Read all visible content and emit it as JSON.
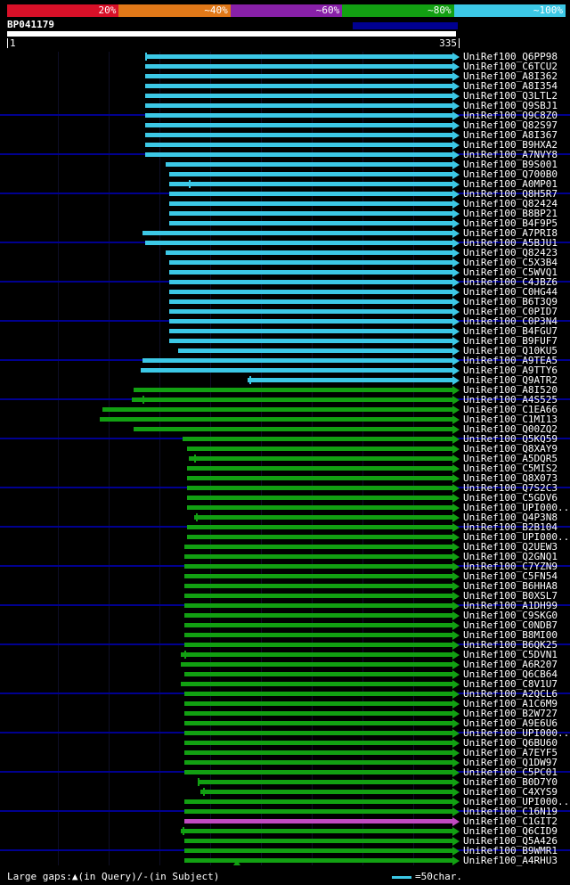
{
  "scale": {
    "segments": [
      {
        "label": "20%",
        "color": "#d81028"
      },
      {
        "label": "~40%",
        "color": "#e07818"
      },
      {
        "label": "~60%",
        "color": "#8820a8"
      },
      {
        "label": "~80%",
        "color": "#12a012"
      },
      {
        "label": "~100%",
        "color": "#3cc8e6"
      }
    ]
  },
  "query": {
    "name": "BP041179",
    "start": "1",
    "end": "335"
  },
  "footer": {
    "gaps": "Large gaps:▲(in Query)/-(in Subject)",
    "unit": "=50char."
  },
  "colors": {
    "cyan": "#3cc8e6",
    "green": "#12a012",
    "magenta": "#c04ac0",
    "navy": "#000090",
    "white": "#ffffff"
  },
  "hits": [
    {
      "label": "UniRef100_Q6PP98",
      "c": "cyan",
      "s": 163,
      "t": 163
    },
    {
      "label": "UniRef100_C6TCU2",
      "c": "cyan",
      "s": 163
    },
    {
      "label": "UniRef100_A8I362",
      "c": "cyan",
      "s": 163
    },
    {
      "label": "UniRef100_A8I354",
      "c": "cyan",
      "s": 163
    },
    {
      "label": "UniRef100_Q3LTL2",
      "c": "cyan",
      "s": 163
    },
    {
      "label": "UniRef100_Q9SBJ1",
      "c": "cyan",
      "s": 163
    },
    {
      "label": "UniRef100_Q9C8Z0",
      "c": "cyan",
      "s": 163,
      "n": true
    },
    {
      "label": "UniRef100_Q82S97",
      "c": "cyan",
      "s": 163
    },
    {
      "label": "UniRef100_A8I367",
      "c": "cyan",
      "s": 163
    },
    {
      "label": "UniRef100_B9HXA2",
      "c": "cyan",
      "s": 163
    },
    {
      "label": "UniRef100_A7NVY8",
      "c": "cyan",
      "s": 163,
      "n": true
    },
    {
      "label": "UniRef100_B9S001",
      "c": "cyan",
      "s": 186
    },
    {
      "label": "UniRef100_Q700B0",
      "c": "cyan",
      "s": 190
    },
    {
      "label": "UniRef100_A0MP01",
      "c": "cyan",
      "s": 190,
      "t": 212
    },
    {
      "label": "UniRef100_Q8H5R7",
      "c": "cyan",
      "s": 190,
      "n": true
    },
    {
      "label": "UniRef100_Q82424",
      "c": "cyan",
      "s": 190
    },
    {
      "label": "UniRef100_B8BP21",
      "c": "cyan",
      "s": 190
    },
    {
      "label": "UniRef100_B4F9P5",
      "c": "cyan",
      "s": 190
    },
    {
      "label": "UniRef100_A7PRI8",
      "c": "cyan",
      "s": 160
    },
    {
      "label": "UniRef100_A5BJU1",
      "c": "cyan",
      "s": 163,
      "n": true
    },
    {
      "label": "UniRef100_Q82423",
      "c": "cyan",
      "s": 186
    },
    {
      "label": "UniRef100_C5X3B4",
      "c": "cyan",
      "s": 190
    },
    {
      "label": "UniRef100_C5WVQ1",
      "c": "cyan",
      "s": 190
    },
    {
      "label": "UniRef100_C4JBZ6",
      "c": "cyan",
      "s": 190,
      "n": true
    },
    {
      "label": "UniRef100_C0HG44",
      "c": "cyan",
      "s": 190
    },
    {
      "label": "UniRef100_B6T3Q9",
      "c": "cyan",
      "s": 190
    },
    {
      "label": "UniRef100_C0PID7",
      "c": "cyan",
      "s": 190
    },
    {
      "label": "UniRef100_C0P3N4",
      "c": "cyan",
      "s": 190,
      "n": true
    },
    {
      "label": "UniRef100_B4FGU7",
      "c": "cyan",
      "s": 190
    },
    {
      "label": "UniRef100_B9FUF7",
      "c": "cyan",
      "s": 190
    },
    {
      "label": "UniRef100_Q10KU5",
      "c": "cyan",
      "s": 200
    },
    {
      "label": "UniRef100_A9TEA5",
      "c": "cyan",
      "s": 160,
      "n": true
    },
    {
      "label": "UniRef100_A9TTY6",
      "c": "cyan",
      "s": 158
    },
    {
      "label": "UniRef100_Q9ATR2",
      "c": "cyan",
      "s": 278,
      "t": 280
    },
    {
      "label": "UniRef100_A8I520",
      "c": "green",
      "s": 150
    },
    {
      "label": "UniRef100_A4S525",
      "c": "green",
      "s": 148,
      "t": 160,
      "n": true
    },
    {
      "label": "UniRef100_C1EA66",
      "c": "green",
      "s": 115
    },
    {
      "label": "UniRef100_C1MI13",
      "c": "green",
      "s": 112
    },
    {
      "label": "UniRef100_Q00ZQ2",
      "c": "green",
      "s": 150
    },
    {
      "label": "UniRef100_Q5KQ59",
      "c": "green",
      "s": 205,
      "n": true
    },
    {
      "label": "UniRef100_Q8XAY9",
      "c": "green",
      "s": 210
    },
    {
      "label": "UniRef100_A5DQR5",
      "c": "green",
      "s": 212,
      "t": 218
    },
    {
      "label": "UniRef100_C5MIS2",
      "c": "green",
      "s": 210
    },
    {
      "label": "UniRef100_Q8X073",
      "c": "green",
      "s": 210
    },
    {
      "label": "UniRef100_Q7S2C3",
      "c": "green",
      "s": 210,
      "n": true
    },
    {
      "label": "UniRef100_C5GDV6",
      "c": "green",
      "s": 210
    },
    {
      "label": "UniRef100_UPI000..",
      "c": "green",
      "s": 210
    },
    {
      "label": "UniRef100_Q4P3N8",
      "c": "green",
      "s": 218,
      "t": 220
    },
    {
      "label": "UniRef100_B2B104",
      "c": "green",
      "s": 210,
      "n": true
    },
    {
      "label": "UniRef100_UPI000..",
      "c": "green",
      "s": 210
    },
    {
      "label": "UniRef100_Q2UEW3",
      "c": "green",
      "s": 207
    },
    {
      "label": "UniRef100_Q2GNQ1",
      "c": "green",
      "s": 207
    },
    {
      "label": "UniRef100_C7YZN9",
      "c": "green",
      "s": 207,
      "n": true
    },
    {
      "label": "UniRef100_C5FN54",
      "c": "green",
      "s": 207
    },
    {
      "label": "UniRef100_B6HHA8",
      "c": "green",
      "s": 207
    },
    {
      "label": "UniRef100_B0XSL7",
      "c": "green",
      "s": 207
    },
    {
      "label": "UniRef100_A1DH99",
      "c": "green",
      "s": 207,
      "n": true
    },
    {
      "label": "UniRef100_C9SKG0",
      "c": "green",
      "s": 207
    },
    {
      "label": "UniRef100_C0NDB7",
      "c": "green",
      "s": 207
    },
    {
      "label": "UniRef100_B8MI00",
      "c": "green",
      "s": 207
    },
    {
      "label": "UniRef100_B6QK25",
      "c": "green",
      "s": 207,
      "n": true
    },
    {
      "label": "UniRef100_C5DVN1",
      "c": "green",
      "s": 203,
      "t": 207
    },
    {
      "label": "UniRef100_A6R207",
      "c": "green",
      "s": 203
    },
    {
      "label": "UniRef100_Q6CB64",
      "c": "green",
      "s": 207
    },
    {
      "label": "UniRef100_C8V1U7",
      "c": "green",
      "s": 203
    },
    {
      "label": "UniRef100_A2QCL6",
      "c": "green",
      "s": 207,
      "n": true
    },
    {
      "label": "UniRef100_A1C6M9",
      "c": "green",
      "s": 207
    },
    {
      "label": "UniRef100_B2W727",
      "c": "green",
      "s": 207
    },
    {
      "label": "UniRef100_A9E6U6",
      "c": "green",
      "s": 207
    },
    {
      "label": "UniRef100_UPI000..",
      "c": "green",
      "s": 207,
      "n": true
    },
    {
      "label": "UniRef100_Q6BU60",
      "c": "green",
      "s": 207
    },
    {
      "label": "UniRef100_A7EYF5",
      "c": "green",
      "s": 207
    },
    {
      "label": "UniRef100_Q1DW97",
      "c": "green",
      "s": 207
    },
    {
      "label": "UniRef100_C5PC01",
      "c": "green",
      "s": 207,
      "n": true
    },
    {
      "label": "UniRef100_B0D7Y0",
      "c": "green",
      "s": 222,
      "t": 222
    },
    {
      "label": "UniRef100_C4XYS9",
      "c": "green",
      "s": 225,
      "t": 228
    },
    {
      "label": "UniRef100_UPI000..",
      "c": "green",
      "s": 207
    },
    {
      "label": "UniRef100_C16N19",
      "c": "green",
      "s": 207,
      "n": true
    },
    {
      "label": "UniRef100_C1GIT2",
      "c": "magenta",
      "s": 207
    },
    {
      "label": "UniRef100_Q6CID9",
      "c": "green",
      "s": 203,
      "t": 205
    },
    {
      "label": "UniRef100_Q5A426",
      "c": "green",
      "s": 207
    },
    {
      "label": "UniRef100_B9WMR1",
      "c": "green",
      "s": 207,
      "n": true
    },
    {
      "label": "UniRef100_A4RHU3",
      "c": "green",
      "s": 207,
      "m": 262
    }
  ]
}
